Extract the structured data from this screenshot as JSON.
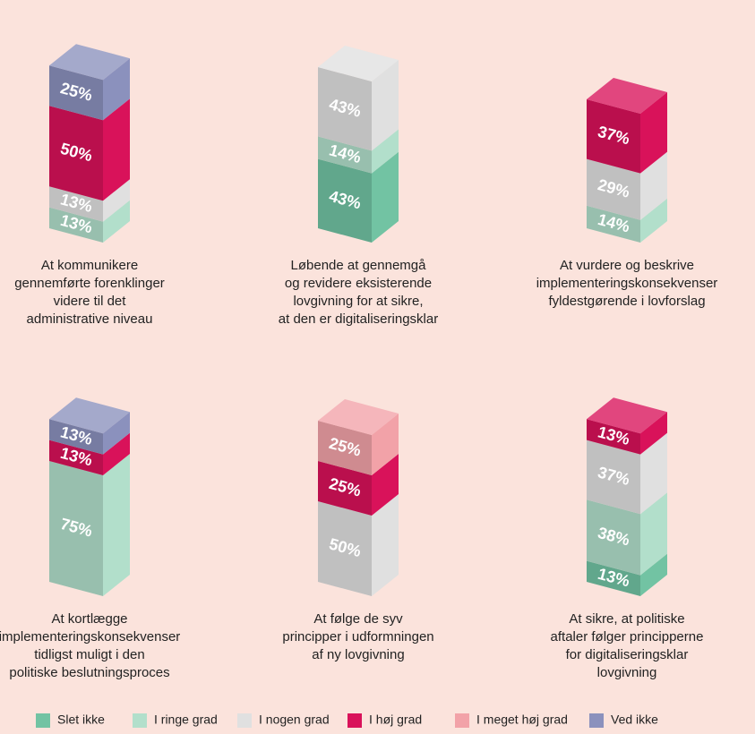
{
  "chart_data": {
    "type": "bar",
    "stacked": true,
    "categories": [
      [
        "At kommunikere",
        "gennemførte forenklinger",
        "videre til det",
        "administrative niveau"
      ],
      [
        "Løbende at gennemgå",
        "og revidere eksisterende",
        "lovgivning for at sikre,",
        "at den er digitaliseringsklar"
      ],
      [
        "At vurdere og beskrive",
        "implementeringskonsekvenser",
        "fyldestgørende i lovforslag"
      ],
      [
        "At kortlægge",
        "implementeringskonsekvenser",
        "tidligst muligt i den",
        "politiske beslutningsproces"
      ],
      [
        "At følge de syv",
        "principper i udformningen",
        "af ny lovgivning"
      ],
      [
        "At sikre, at politiske",
        "aftaler følger principperne",
        "for digitaliseringsklar",
        "lovgivning"
      ]
    ],
    "series": [
      {
        "name": "Slet ikke",
        "color": "#72c3a3",
        "values": [
          null,
          43,
          null,
          null,
          null,
          13
        ],
        "value_labels": [
          null,
          "43%",
          null,
          null,
          null,
          "13%"
        ]
      },
      {
        "name": "I ringe grad",
        "color": "#b2dfcb",
        "values": [
          13,
          14,
          14,
          75,
          null,
          38
        ],
        "value_labels": [
          "13%",
          "14%",
          "14%",
          "75%",
          null,
          "38%"
        ]
      },
      {
        "name": "I nogen grad",
        "color": "#e0e0e0",
        "values": [
          13,
          43,
          29,
          null,
          50,
          37
        ],
        "value_labels": [
          "13%",
          "43%",
          "29%",
          null,
          "50%",
          "37%"
        ]
      },
      {
        "name": "I høj grad",
        "color": "#d9125a",
        "values": [
          50,
          null,
          37,
          13,
          25,
          13
        ],
        "value_labels": [
          "50%",
          null,
          "37%",
          "13%",
          "25%",
          "13%"
        ]
      },
      {
        "name": "I meget høj grad",
        "color": "#f2a2a8",
        "values": [
          null,
          null,
          null,
          null,
          25,
          null
        ],
        "value_labels": [
          null,
          null,
          null,
          null,
          "25%",
          null
        ]
      },
      {
        "name": "Ved ikke",
        "color": "#8b91bd",
        "values": [
          25,
          null,
          null,
          13,
          null,
          null
        ],
        "value_labels": [
          "25%",
          null,
          null,
          "13%",
          null,
          null
        ]
      }
    ],
    "legend": "bottom"
  }
}
